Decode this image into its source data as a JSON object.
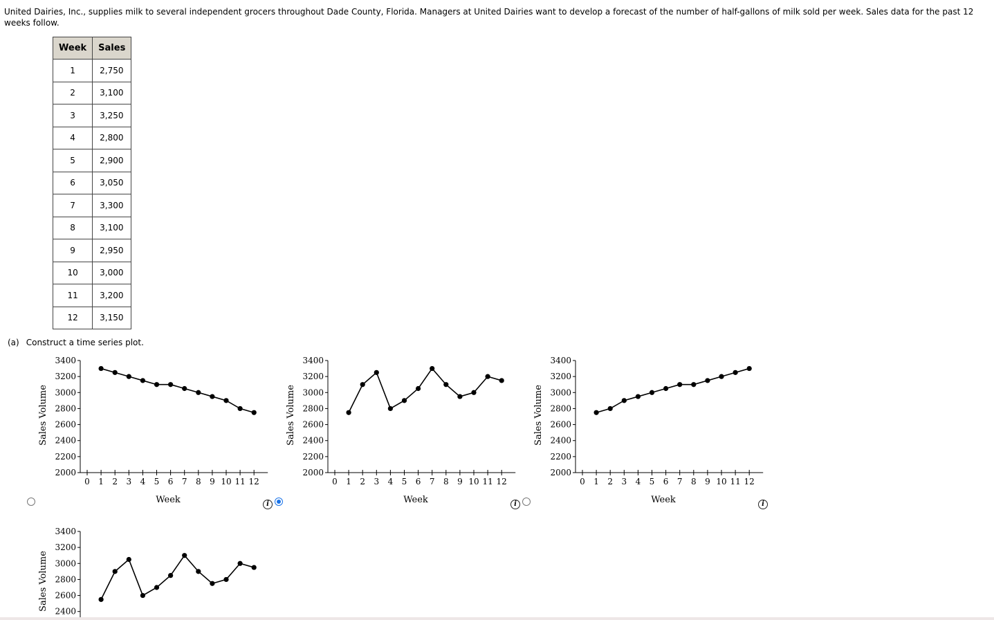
{
  "intro": "United Dairies, Inc., supplies milk to several independent grocers throughout Dade County, Florida. Managers at United Dairies want to develop a forecast of the number of half-gallons of milk sold per week. Sales data for the past 12 weeks follow.",
  "table": {
    "headers": [
      "Week",
      "Sales"
    ],
    "rows": [
      [
        "1",
        "2,750"
      ],
      [
        "2",
        "3,100"
      ],
      [
        "3",
        "3,250"
      ],
      [
        "4",
        "2,800"
      ],
      [
        "5",
        "2,900"
      ],
      [
        "6",
        "3,050"
      ],
      [
        "7",
        "3,300"
      ],
      [
        "8",
        "3,100"
      ],
      [
        "9",
        "2,950"
      ],
      [
        "10",
        "3,000"
      ],
      [
        "11",
        "3,200"
      ],
      [
        "12",
        "3,150"
      ]
    ]
  },
  "part_a": {
    "letter": "(a)",
    "prompt": "Construct a time series plot."
  },
  "info_symbol": "i",
  "selected_option": 2,
  "chart_data": [
    {
      "type": "line",
      "option": 1,
      "x": [
        1,
        2,
        3,
        4,
        5,
        6,
        7,
        8,
        9,
        10,
        11,
        12
      ],
      "values": [
        3300,
        3250,
        3200,
        3150,
        3100,
        3100,
        3050,
        3000,
        2950,
        2900,
        2800,
        2750
      ],
      "xlabel": "Week",
      "ylabel": "Sales Volume",
      "xticks": [
        "0",
        "1",
        "2",
        "3",
        "4",
        "5",
        "6",
        "7",
        "8",
        "9",
        "10",
        "11",
        "12"
      ],
      "yticks": [
        "2000",
        "2200",
        "2400",
        "2600",
        "2800",
        "3000",
        "3200",
        "3400"
      ],
      "xlim": [
        0,
        12
      ],
      "ylim": [
        2000,
        3400
      ]
    },
    {
      "type": "line",
      "option": 2,
      "x": [
        1,
        2,
        3,
        4,
        5,
        6,
        7,
        8,
        9,
        10,
        11,
        12
      ],
      "values": [
        2750,
        3100,
        3250,
        2800,
        2900,
        3050,
        3300,
        3100,
        2950,
        3000,
        3200,
        3150
      ],
      "xlabel": "Week",
      "ylabel": "Sales Volume",
      "xticks": [
        "0",
        "1",
        "2",
        "3",
        "4",
        "5",
        "6",
        "7",
        "8",
        "9",
        "10",
        "11",
        "12"
      ],
      "yticks": [
        "2000",
        "2200",
        "2400",
        "2600",
        "2800",
        "3000",
        "3200",
        "3400"
      ],
      "xlim": [
        0,
        12
      ],
      "ylim": [
        2000,
        3400
      ]
    },
    {
      "type": "line",
      "option": 3,
      "x": [
        1,
        2,
        3,
        4,
        5,
        6,
        7,
        8,
        9,
        10,
        11,
        12
      ],
      "values": [
        2750,
        2800,
        2900,
        2950,
        3000,
        3050,
        3100,
        3100,
        3150,
        3200,
        3250,
        3300
      ],
      "xlabel": "Week",
      "ylabel": "Sales Volume",
      "xticks": [
        "0",
        "1",
        "2",
        "3",
        "4",
        "5",
        "6",
        "7",
        "8",
        "9",
        "10",
        "11",
        "12"
      ],
      "yticks": [
        "2000",
        "2200",
        "2400",
        "2600",
        "2800",
        "3000",
        "3200",
        "3400"
      ],
      "xlim": [
        0,
        12
      ],
      "ylim": [
        2000,
        3400
      ]
    },
    {
      "type": "line",
      "option": 4,
      "x": [
        1,
        2,
        3,
        4,
        5,
        6,
        7,
        8,
        9,
        10,
        11,
        12
      ],
      "values": [
        2550,
        2900,
        3050,
        2600,
        2700,
        2850,
        3100,
        2900,
        2750,
        2800,
        3000,
        2950
      ],
      "xlabel": "",
      "ylabel": "Sales Volume",
      "xticks": [],
      "yticks": [
        "2400",
        "2600",
        "2800",
        "3000",
        "3200",
        "3400"
      ],
      "xlim": [
        0,
        12
      ],
      "ylim": [
        2000,
        3400
      ]
    }
  ]
}
